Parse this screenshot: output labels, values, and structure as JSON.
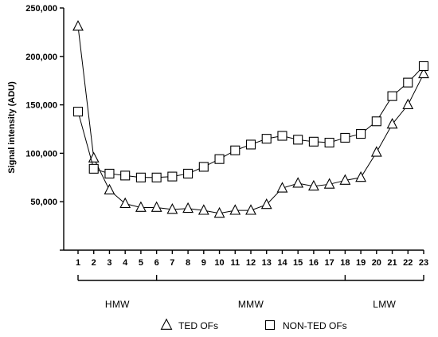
{
  "chart_data": {
    "type": "line",
    "ylabel": "Signal intensity (ADU)",
    "xlabel": "",
    "ylim": [
      0,
      250000
    ],
    "y_ticks": [
      {
        "value": 50000,
        "label": "50,000"
      },
      {
        "value": 100000,
        "label": "100,000"
      },
      {
        "value": 150000,
        "label": "150,000"
      },
      {
        "value": 200000,
        "label": "200,000"
      },
      {
        "value": 250000,
        "label": "250,000"
      }
    ],
    "x": [
      1,
      2,
      3,
      4,
      5,
      6,
      7,
      8,
      9,
      10,
      11,
      12,
      13,
      14,
      15,
      16,
      17,
      18,
      19,
      20,
      21,
      22,
      23
    ],
    "categories": [
      "1",
      "2",
      "3",
      "4",
      "5",
      "6",
      "7",
      "8",
      "9",
      "10",
      "11",
      "12",
      "13",
      "14",
      "15",
      "16",
      "17",
      "18",
      "19",
      "20",
      "21",
      "22",
      "23"
    ],
    "series": [
      {
        "name": "TED OFs",
        "marker": "triangle",
        "values": [
          231000,
          95000,
          62000,
          48000,
          44000,
          44000,
          42000,
          43000,
          41000,
          38000,
          41000,
          41000,
          47000,
          64000,
          69000,
          66000,
          68000,
          72000,
          75000,
          101000,
          130000,
          150000,
          182000
        ]
      },
      {
        "name": "NON-TED OFs",
        "marker": "square",
        "values": [
          143000,
          84000,
          79000,
          77000,
          75000,
          75000,
          76000,
          79000,
          86000,
          94000,
          103000,
          109000,
          115000,
          118000,
          114000,
          112000,
          111000,
          116000,
          120000,
          133000,
          159000,
          173000,
          190000
        ]
      }
    ],
    "bands": [
      {
        "label": "HMW",
        "from": 1,
        "to": 6
      },
      {
        "label": "MMW",
        "from": 6,
        "to": 18
      },
      {
        "label": "LMW",
        "from": 18,
        "to": 23
      }
    ],
    "legend_position": "bottom-center",
    "grid": false
  }
}
